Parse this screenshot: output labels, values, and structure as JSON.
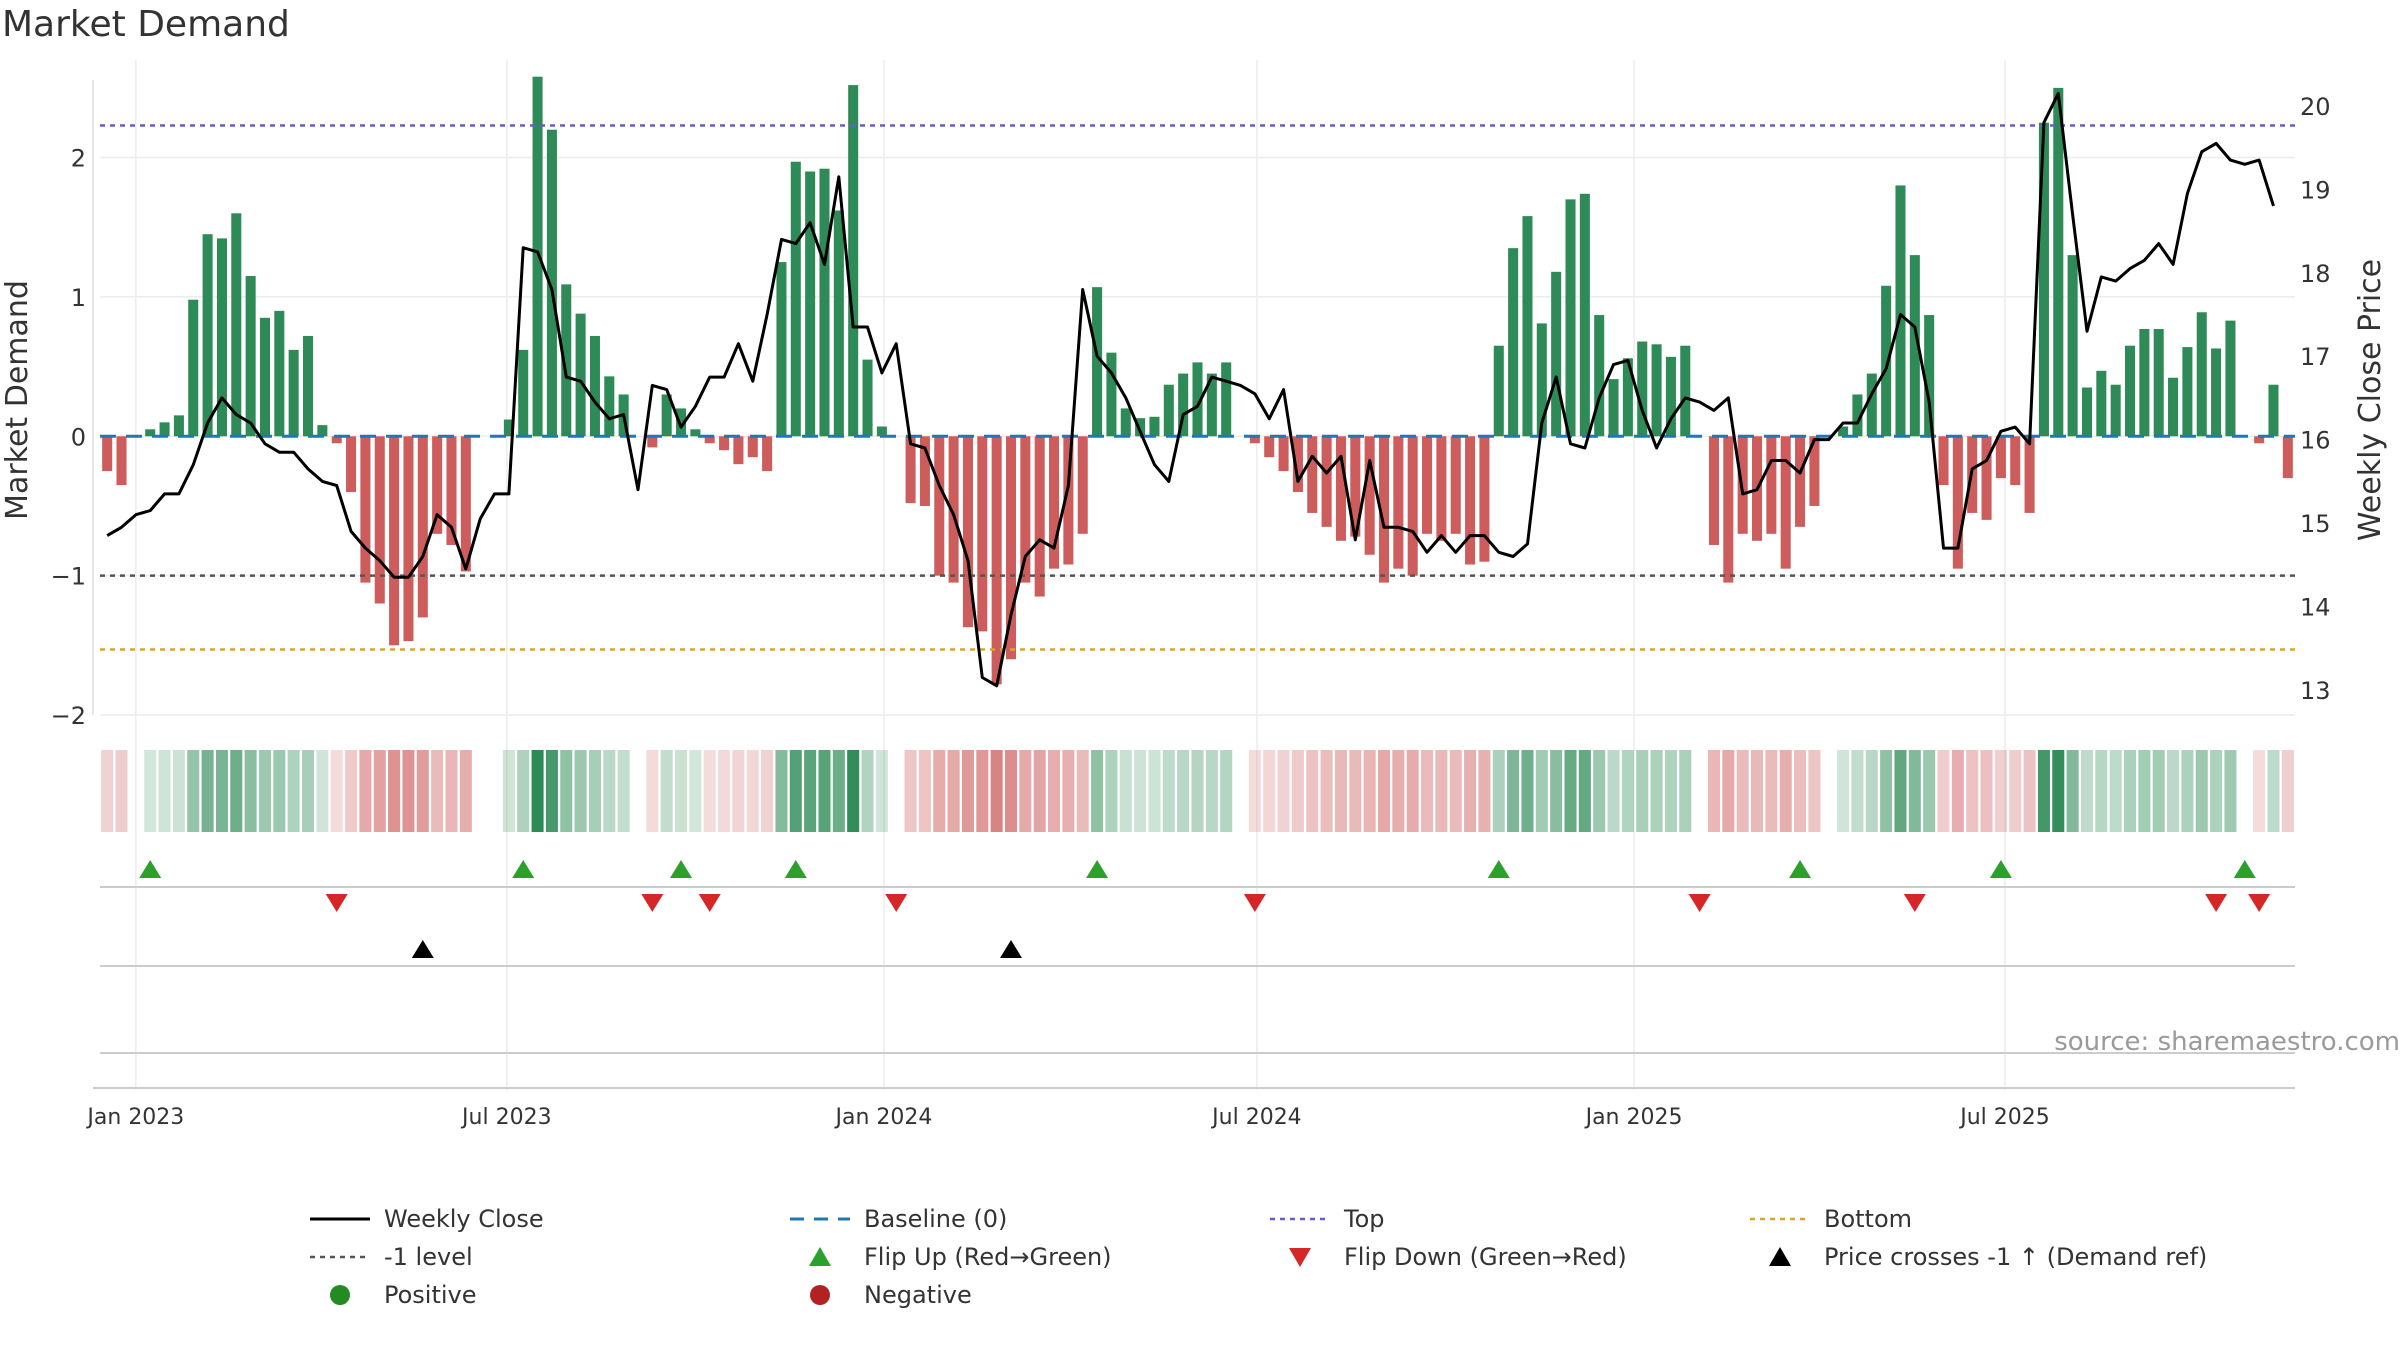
{
  "chart_data": {
    "type": "bar",
    "title": "Market Demand",
    "ylabel": "Market Demand",
    "y2label": "Weekly Close Price",
    "source": "source: sharemaestro.com",
    "ylim": [
      -2.0,
      2.7
    ],
    "y2lim": [
      12.7,
      20.55
    ],
    "yticks": [
      -2,
      -1,
      0,
      1,
      2
    ],
    "ytick_labels": [
      "−2",
      "−1",
      "0",
      "1",
      "2"
    ],
    "y2ticks": [
      13,
      14,
      15,
      16,
      17,
      18,
      19,
      20
    ],
    "y2tick_labels": [
      "13",
      "14",
      "15",
      "16",
      "17",
      "18",
      "19",
      "20"
    ],
    "xticks": [
      {
        "date": "2023-01-01",
        "label": "Jan 2023"
      },
      {
        "date": "2023-07-01",
        "label": "Jul 2023"
      },
      {
        "date": "2024-01-01",
        "label": "Jan 2024"
      },
      {
        "date": "2024-07-01",
        "label": "Jul 2024"
      },
      {
        "date": "2025-01-01",
        "label": "Jan 2025"
      },
      {
        "date": "2025-07-01",
        "label": "Jul 2025"
      }
    ],
    "start_date": "2022-12-18",
    "week_days": 7,
    "reference_lines": {
      "top": 2.23,
      "minus_one": -1.0,
      "bottom": -1.53,
      "baseline": 0
    },
    "colors": {
      "positive": "#2e8b57",
      "negative": "#cd5c5c",
      "close": "#000000",
      "baseline": "#1f77b4",
      "top": "#6a5acd",
      "minus_one": "#555555",
      "bottom": "#daa520",
      "flip_up": "#2ca02c",
      "flip_down": "#d62728",
      "cross": "#000000",
      "positive_dot": "#228b22",
      "negative_dot": "#b22222"
    },
    "demand": [
      -0.25,
      -0.35,
      0.0,
      0.05,
      0.1,
      0.15,
      0.98,
      1.45,
      1.42,
      1.6,
      1.15,
      0.85,
      0.9,
      0.62,
      0.72,
      0.08,
      -0.05,
      -0.4,
      -1.05,
      -1.2,
      -1.5,
      -1.47,
      -1.3,
      -0.7,
      -0.78,
      -0.97,
      0.0,
      0.0,
      0.12,
      0.62,
      2.58,
      2.2,
      1.09,
      0.88,
      0.72,
      0.43,
      0.3,
      0.0,
      -0.08,
      0.3,
      0.2,
      0.05,
      -0.05,
      -0.1,
      -0.2,
      -0.15,
      -0.25,
      1.25,
      1.97,
      1.9,
      1.92,
      1.62,
      2.52,
      0.55,
      0.07,
      0.0,
      -0.48,
      -0.5,
      -1.0,
      -1.05,
      -1.37,
      -1.4,
      -1.78,
      -1.6,
      -1.05,
      -1.15,
      -0.95,
      -0.92,
      -0.7,
      1.07,
      0.6,
      0.2,
      0.13,
      0.14,
      0.37,
      0.45,
      0.53,
      0.45,
      0.53,
      0.0,
      -0.05,
      -0.15,
      -0.25,
      -0.4,
      -0.55,
      -0.65,
      -0.75,
      -0.72,
      -0.85,
      -1.05,
      -0.95,
      -1.0,
      -0.7,
      -0.75,
      -0.7,
      -0.92,
      -0.9,
      0.65,
      1.35,
      1.58,
      0.81,
      1.18,
      1.7,
      1.74,
      0.87,
      0.41,
      0.56,
      0.68,
      0.66,
      0.57,
      0.65,
      0.0,
      -0.78,
      -1.05,
      -0.7,
      -0.75,
      -0.7,
      -0.95,
      -0.65,
      -0.5,
      0.0,
      0.07,
      0.3,
      0.45,
      1.08,
      1.8,
      1.3,
      0.87,
      -0.35,
      -0.95,
      -0.55,
      -0.6,
      -0.3,
      -0.35,
      -0.55,
      2.25,
      2.5,
      1.3,
      0.35,
      0.47,
      0.37,
      0.65,
      0.77,
      0.77,
      0.42,
      0.64,
      0.89,
      0.63,
      0.83,
      0.0,
      -0.05,
      0.37,
      -0.3
    ],
    "close": [
      14.85,
      14.95,
      15.1,
      15.15,
      15.35,
      15.35,
      15.7,
      16.2,
      16.5,
      16.3,
      16.2,
      15.95,
      15.85,
      15.85,
      15.65,
      15.5,
      15.45,
      14.9,
      14.7,
      14.55,
      14.35,
      14.35,
      14.6,
      15.1,
      14.95,
      14.45,
      15.05,
      15.35,
      15.35,
      18.3,
      18.25,
      17.8,
      16.75,
      16.7,
      16.45,
      16.25,
      16.3,
      15.4,
      16.65,
      16.6,
      16.15,
      16.4,
      16.75,
      16.75,
      17.15,
      16.7,
      17.5,
      18.4,
      18.35,
      18.6,
      18.1,
      19.15,
      17.35,
      17.35,
      16.8,
      17.15,
      15.95,
      15.9,
      15.45,
      15.1,
      14.55,
      13.15,
      13.05,
      13.9,
      14.6,
      14.8,
      14.7,
      15.45,
      17.8,
      17.0,
      16.8,
      16.5,
      16.1,
      15.7,
      15.5,
      16.3,
      16.4,
      16.75,
      16.7,
      16.65,
      16.55,
      16.25,
      16.6,
      15.5,
      15.8,
      15.6,
      15.8,
      14.8,
      15.75,
      14.95,
      14.95,
      14.9,
      14.65,
      14.85,
      14.65,
      14.85,
      14.85,
      14.65,
      14.6,
      14.75,
      16.2,
      16.75,
      15.95,
      15.9,
      16.5,
      16.9,
      16.95,
      16.35,
      15.9,
      16.25,
      16.5,
      16.45,
      16.35,
      16.5,
      15.35,
      15.4,
      15.75,
      15.75,
      15.6,
      16.0,
      16.0,
      16.2,
      16.2,
      16.55,
      16.85,
      17.5,
      17.35,
      16.45,
      14.7,
      14.7,
      15.65,
      15.75,
      16.1,
      16.15,
      15.95,
      19.8,
      20.15,
      18.7,
      17.3,
      17.95,
      17.9,
      18.05,
      18.15,
      18.35,
      18.1,
      18.95,
      19.45,
      19.55,
      19.35,
      19.3,
      19.35,
      18.8
    ],
    "flip_up": [
      3,
      29,
      40,
      48,
      69,
      97,
      118,
      132,
      149
    ],
    "flip_down": [
      16,
      38,
      42,
      55,
      80,
      111,
      126,
      147,
      150
    ],
    "price_cross": [
      22,
      63
    ],
    "legend": [
      {
        "key": "close",
        "label": "Weekly Close",
        "kind": "line"
      },
      {
        "key": "baseline",
        "label": "Baseline (0)",
        "kind": "dash"
      },
      {
        "key": "top",
        "label": "Top",
        "kind": "dot"
      },
      {
        "key": "bottom",
        "label": "Bottom",
        "kind": "dot"
      },
      {
        "key": "minus_one",
        "label": "-1 level",
        "kind": "dot"
      },
      {
        "key": "flip_up",
        "label": "Flip Up (Red→Green)",
        "kind": "tri-up"
      },
      {
        "key": "flip_down",
        "label": "Flip Down (Green→Red)",
        "kind": "tri-down"
      },
      {
        "key": "cross",
        "label": "Price crosses -1 ↑ (Demand ref)",
        "kind": "tri-up"
      },
      {
        "key": "positive_dot",
        "label": "Positive",
        "kind": "circle"
      },
      {
        "key": "negative_dot",
        "label": "Negative",
        "kind": "circle"
      }
    ]
  }
}
